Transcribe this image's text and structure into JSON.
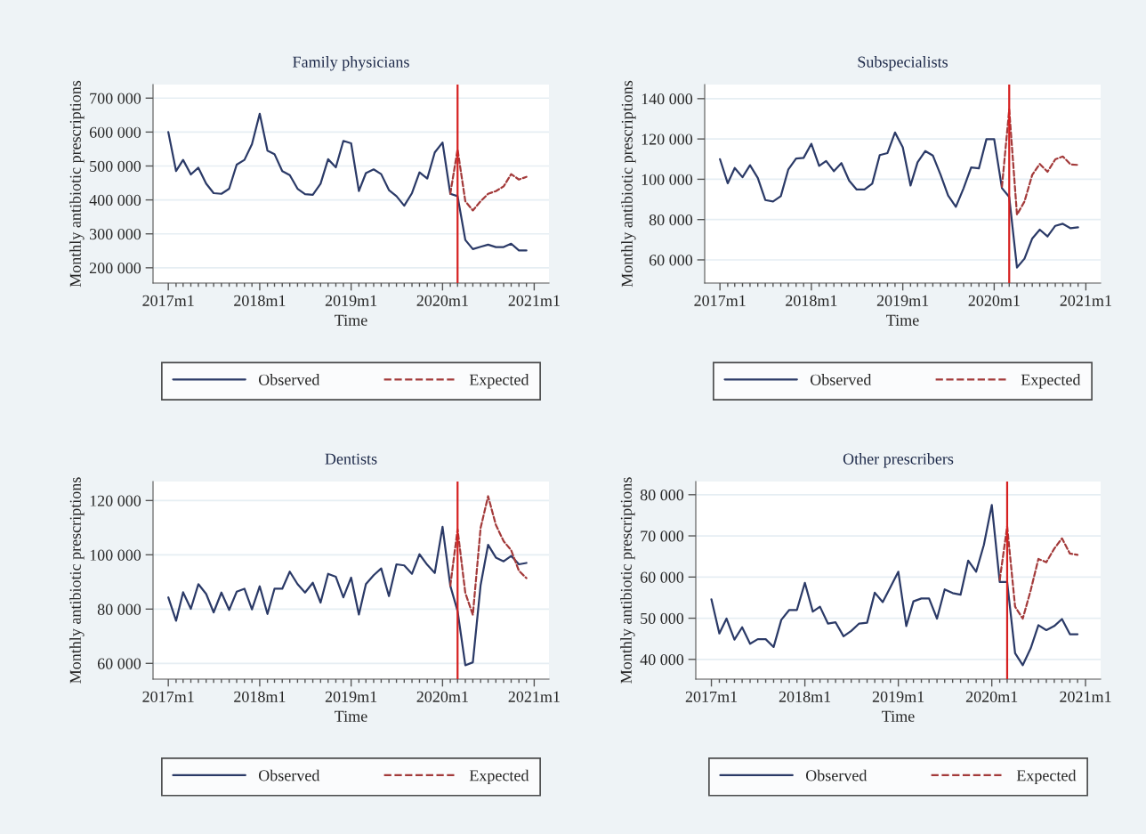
{
  "chart_data": [
    {
      "type": "line",
      "title": "Family physicians",
      "xlabel": "Time",
      "ylabel": "Monthly antibiotic prescriptions",
      "legend": "bottom",
      "grid": "y",
      "x": [
        "2017-01",
        "2017-02",
        "2017-03",
        "2017-04",
        "2017-05",
        "2017-06",
        "2017-07",
        "2017-08",
        "2017-09",
        "2017-10",
        "2017-11",
        "2017-12",
        "2018-01",
        "2018-02",
        "2018-03",
        "2018-04",
        "2018-05",
        "2018-06",
        "2018-07",
        "2018-08",
        "2018-09",
        "2018-10",
        "2018-11",
        "2018-12",
        "2019-01",
        "2019-02",
        "2019-03",
        "2019-04",
        "2019-05",
        "2019-06",
        "2019-07",
        "2019-08",
        "2019-09",
        "2019-10",
        "2019-11",
        "2019-12",
        "2020-01",
        "2020-02",
        "2020-03",
        "2020-04",
        "2020-05",
        "2020-06",
        "2020-07",
        "2020-08",
        "2020-09",
        "2020-10",
        "2020-11",
        "2020-12"
      ],
      "series": [
        {
          "name": "Observed",
          "color": "#2b3a67",
          "line_style": "solid",
          "values": [
            600000,
            485000,
            518000,
            475000,
            495000,
            448000,
            420000,
            418000,
            433000,
            504000,
            518000,
            564000,
            654000,
            545000,
            535000,
            485000,
            473000,
            433000,
            417000,
            415000,
            448000,
            520000,
            496000,
            574000,
            567000,
            426000,
            479000,
            490000,
            476000,
            429000,
            411000,
            383000,
            420000,
            481000,
            463000,
            540000,
            569000,
            418000,
            411000,
            282000,
            255000,
            262000,
            268000,
            261000,
            261000,
            271000,
            251000,
            251000
          ]
        },
        {
          "name": "Expected",
          "color": "#a33a3a",
          "line_style": "dashed",
          "x": [
            "2020-02",
            "2020-03",
            "2020-04",
            "2020-05",
            "2020-06",
            "2020-07",
            "2020-08",
            "2020-09",
            "2020-10",
            "2020-11",
            "2020-12"
          ],
          "values": [
            418000,
            549000,
            396000,
            369000,
            396000,
            418000,
            426000,
            440000,
            476000,
            460000,
            468000
          ]
        }
      ],
      "ylim": [
        155000,
        740000
      ],
      "yticks": [
        {
          "value": 200000,
          "label": "200 000"
        },
        {
          "value": 300000,
          "label": "300 000"
        },
        {
          "value": 400000,
          "label": "400 000"
        },
        {
          "value": 500000,
          "label": "500 000"
        },
        {
          "value": 600000,
          "label": "600 000"
        },
        {
          "value": 700000,
          "label": "700 000"
        }
      ],
      "xlim": [
        "2016-11",
        "2021-03"
      ],
      "xticks": [
        {
          "value": "2017-01",
          "label": "2017m1"
        },
        {
          "value": "2017-02",
          "label": null
        },
        {
          "value": "2017-03",
          "label": null
        },
        {
          "value": "2017-04",
          "label": null
        },
        {
          "value": "2017-05",
          "label": null
        },
        {
          "value": "2017-06",
          "label": null
        },
        {
          "value": "2017-07",
          "label": null
        },
        {
          "value": "2017-08",
          "label": null
        },
        {
          "value": "2017-09",
          "label": null
        },
        {
          "value": "2017-10",
          "label": null
        },
        {
          "value": "2017-11",
          "label": null
        },
        {
          "value": "2017-12",
          "label": null
        },
        {
          "value": "2018-01",
          "label": "2018m1"
        },
        {
          "value": "2018-02",
          "label": null
        },
        {
          "value": "2018-03",
          "label": null
        },
        {
          "value": "2018-04",
          "label": null
        },
        {
          "value": "2018-05",
          "label": null
        },
        {
          "value": "2018-06",
          "label": null
        },
        {
          "value": "2018-07",
          "label": null
        },
        {
          "value": "2018-08",
          "label": null
        },
        {
          "value": "2018-09",
          "label": null
        },
        {
          "value": "2018-10",
          "label": null
        },
        {
          "value": "2018-11",
          "label": null
        },
        {
          "value": "2018-12",
          "label": null
        },
        {
          "value": "2019-01",
          "label": "2019m1"
        },
        {
          "value": "2019-02",
          "label": null
        },
        {
          "value": "2019-03",
          "label": null
        },
        {
          "value": "2019-04",
          "label": null
        },
        {
          "value": "2019-05",
          "label": null
        },
        {
          "value": "2019-06",
          "label": null
        },
        {
          "value": "2019-07",
          "label": null
        },
        {
          "value": "2019-08",
          "label": null
        },
        {
          "value": "2019-09",
          "label": null
        },
        {
          "value": "2019-10",
          "label": null
        },
        {
          "value": "2019-11",
          "label": null
        },
        {
          "value": "2019-12",
          "label": null
        },
        {
          "value": "2020-01",
          "label": "2020m1"
        },
        {
          "value": "2020-02",
          "label": null
        },
        {
          "value": "2020-03",
          "label": null
        },
        {
          "value": "2020-04",
          "label": null
        },
        {
          "value": "2020-05",
          "label": null
        },
        {
          "value": "2020-06",
          "label": null
        },
        {
          "value": "2020-07",
          "label": null
        },
        {
          "value": "2020-08",
          "label": null
        },
        {
          "value": "2020-09",
          "label": null
        },
        {
          "value": "2020-10",
          "label": null
        },
        {
          "value": "2020-11",
          "label": null
        },
        {
          "value": "2020-12",
          "label": null
        },
        {
          "value": "2021-01",
          "label": "2021m1"
        }
      ],
      "ref_lines": [
        {
          "axis": "x",
          "value": "2020-03",
          "color": "#d62020"
        }
      ]
    },
    {
      "type": "line",
      "title": "Subspecialists",
      "xlabel": "Time",
      "ylabel": "Monthly antibiotic prescriptions",
      "legend": "bottom",
      "grid": "y",
      "x": [
        "2017-01",
        "2017-02",
        "2017-03",
        "2017-04",
        "2017-05",
        "2017-06",
        "2017-07",
        "2017-08",
        "2017-09",
        "2017-10",
        "2017-11",
        "2017-12",
        "2018-01",
        "2018-02",
        "2018-03",
        "2018-04",
        "2018-05",
        "2018-06",
        "2018-07",
        "2018-08",
        "2018-09",
        "2018-10",
        "2018-11",
        "2018-12",
        "2019-01",
        "2019-02",
        "2019-03",
        "2019-04",
        "2019-05",
        "2019-06",
        "2019-07",
        "2019-08",
        "2019-09",
        "2019-10",
        "2019-11",
        "2019-12",
        "2020-01",
        "2020-02",
        "2020-03",
        "2020-04",
        "2020-05",
        "2020-06",
        "2020-07",
        "2020-08",
        "2020-09",
        "2020-10",
        "2020-11",
        "2020-12"
      ],
      "series": [
        {
          "name": "Observed",
          "color": "#2b3a67",
          "line_style": "solid",
          "values": [
            110000,
            98000,
            105600,
            101000,
            107000,
            100700,
            89700,
            89000,
            91600,
            104900,
            110300,
            110600,
            117600,
            106600,
            109100,
            104000,
            108000,
            99300,
            94900,
            94900,
            97800,
            112000,
            113000,
            123200,
            115900,
            96900,
            108400,
            114000,
            111800,
            102200,
            91900,
            86300,
            95600,
            105900,
            105400,
            119900,
            119900,
            95600,
            91200,
            56200,
            60600,
            70600,
            75000,
            71600,
            76900,
            77900,
            75700,
            76200
          ]
        },
        {
          "name": "Expected",
          "color": "#a33a3a",
          "line_style": "dashed",
          "x": [
            "2020-02",
            "2020-03",
            "2020-04",
            "2020-05",
            "2020-06",
            "2020-07",
            "2020-08",
            "2020-09",
            "2020-10",
            "2020-11",
            "2020-12"
          ],
          "values": [
            96300,
            134600,
            82400,
            89000,
            102200,
            107600,
            103700,
            109900,
            111300,
            107400,
            107100
          ]
        }
      ],
      "ylim": [
        48500,
        147000
      ],
      "yticks": [
        {
          "value": 60000,
          "label": "60 000"
        },
        {
          "value": 80000,
          "label": "80 000"
        },
        {
          "value": 100000,
          "label": "100 000"
        },
        {
          "value": 120000,
          "label": "120 000"
        },
        {
          "value": 140000,
          "label": "140 000"
        }
      ],
      "xlim": [
        "2016-11",
        "2021-03"
      ],
      "xticks": [
        {
          "value": "2017-01",
          "label": "2017m1"
        },
        {
          "value": "2017-02",
          "label": null
        },
        {
          "value": "2017-03",
          "label": null
        },
        {
          "value": "2017-04",
          "label": null
        },
        {
          "value": "2017-05",
          "label": null
        },
        {
          "value": "2017-06",
          "label": null
        },
        {
          "value": "2017-07",
          "label": null
        },
        {
          "value": "2017-08",
          "label": null
        },
        {
          "value": "2017-09",
          "label": null
        },
        {
          "value": "2017-10",
          "label": null
        },
        {
          "value": "2017-11",
          "label": null
        },
        {
          "value": "2017-12",
          "label": null
        },
        {
          "value": "2018-01",
          "label": "2018m1"
        },
        {
          "value": "2018-02",
          "label": null
        },
        {
          "value": "2018-03",
          "label": null
        },
        {
          "value": "2018-04",
          "label": null
        },
        {
          "value": "2018-05",
          "label": null
        },
        {
          "value": "2018-06",
          "label": null
        },
        {
          "value": "2018-07",
          "label": null
        },
        {
          "value": "2018-08",
          "label": null
        },
        {
          "value": "2018-09",
          "label": null
        },
        {
          "value": "2018-10",
          "label": null
        },
        {
          "value": "2018-11",
          "label": null
        },
        {
          "value": "2018-12",
          "label": null
        },
        {
          "value": "2019-01",
          "label": "2019m1"
        },
        {
          "value": "2019-02",
          "label": null
        },
        {
          "value": "2019-03",
          "label": null
        },
        {
          "value": "2019-04",
          "label": null
        },
        {
          "value": "2019-05",
          "label": null
        },
        {
          "value": "2019-06",
          "label": null
        },
        {
          "value": "2019-07",
          "label": null
        },
        {
          "value": "2019-08",
          "label": null
        },
        {
          "value": "2019-09",
          "label": null
        },
        {
          "value": "2019-10",
          "label": null
        },
        {
          "value": "2019-11",
          "label": null
        },
        {
          "value": "2019-12",
          "label": null
        },
        {
          "value": "2020-01",
          "label": "2020m1"
        },
        {
          "value": "2020-02",
          "label": null
        },
        {
          "value": "2020-03",
          "label": null
        },
        {
          "value": "2020-04",
          "label": null
        },
        {
          "value": "2020-05",
          "label": null
        },
        {
          "value": "2020-06",
          "label": null
        },
        {
          "value": "2020-07",
          "label": null
        },
        {
          "value": "2020-08",
          "label": null
        },
        {
          "value": "2020-09",
          "label": null
        },
        {
          "value": "2020-10",
          "label": null
        },
        {
          "value": "2020-11",
          "label": null
        },
        {
          "value": "2020-12",
          "label": null
        },
        {
          "value": "2021-01",
          "label": "2021m1"
        }
      ],
      "ref_lines": [
        {
          "axis": "x",
          "value": "2020-03",
          "color": "#d62020"
        }
      ]
    },
    {
      "type": "line",
      "title": "Dentists",
      "xlabel": "Time",
      "ylabel": "Monthly antibiotic prescriptions",
      "legend": "bottom",
      "grid": "y",
      "x": [
        "2017-01",
        "2017-02",
        "2017-03",
        "2017-04",
        "2017-05",
        "2017-06",
        "2017-07",
        "2017-08",
        "2017-09",
        "2017-10",
        "2017-11",
        "2017-12",
        "2018-01",
        "2018-02",
        "2018-03",
        "2018-04",
        "2018-05",
        "2018-06",
        "2018-07",
        "2018-08",
        "2018-09",
        "2018-10",
        "2018-11",
        "2018-12",
        "2019-01",
        "2019-02",
        "2019-03",
        "2019-04",
        "2019-05",
        "2019-06",
        "2019-07",
        "2019-08",
        "2019-09",
        "2019-10",
        "2019-11",
        "2019-12",
        "2020-01",
        "2020-02",
        "2020-03",
        "2020-04",
        "2020-05",
        "2020-06",
        "2020-07",
        "2020-08",
        "2020-09",
        "2020-10",
        "2020-11",
        "2020-12"
      ],
      "series": [
        {
          "name": "Observed",
          "color": "#2b3a67",
          "line_style": "solid",
          "values": [
            84300,
            75700,
            86200,
            80100,
            89200,
            85600,
            78800,
            86100,
            79700,
            86400,
            87500,
            79900,
            88400,
            78200,
            87500,
            87500,
            93800,
            89200,
            86100,
            89700,
            82400,
            93000,
            91900,
            84300,
            91600,
            78000,
            89200,
            92500,
            95000,
            84800,
            96500,
            96100,
            93000,
            100200,
            96300,
            93300,
            110300,
            88600,
            79300,
            59300,
            60400,
            88800,
            103700,
            99000,
            97600,
            99600,
            96500,
            97000
          ]
        },
        {
          "name": "Expected",
          "color": "#a33a3a",
          "line_style": "dashed",
          "x": [
            "2020-02",
            "2020-03",
            "2020-04",
            "2020-05",
            "2020-06",
            "2020-07",
            "2020-08",
            "2020-09",
            "2020-10",
            "2020-11",
            "2020-12"
          ],
          "values": [
            88600,
            109400,
            85900,
            77900,
            109900,
            121600,
            111000,
            105000,
            101700,
            94100,
            91400
          ]
        }
      ],
      "ylim": [
        54200,
        127000
      ],
      "yticks": [
        {
          "value": 60000,
          "label": "60 000"
        },
        {
          "value": 80000,
          "label": "80 000"
        },
        {
          "value": 100000,
          "label": "100 000"
        },
        {
          "value": 120000,
          "label": "120 000"
        }
      ],
      "xlim": [
        "2016-11",
        "2021-03"
      ],
      "xticks": [
        {
          "value": "2017-01",
          "label": "2017m1"
        },
        {
          "value": "2017-02",
          "label": null
        },
        {
          "value": "2017-03",
          "label": null
        },
        {
          "value": "2017-04",
          "label": null
        },
        {
          "value": "2017-05",
          "label": null
        },
        {
          "value": "2017-06",
          "label": null
        },
        {
          "value": "2017-07",
          "label": null
        },
        {
          "value": "2017-08",
          "label": null
        },
        {
          "value": "2017-09",
          "label": null
        },
        {
          "value": "2017-10",
          "label": null
        },
        {
          "value": "2017-11",
          "label": null
        },
        {
          "value": "2017-12",
          "label": null
        },
        {
          "value": "2018-01",
          "label": "2018m1"
        },
        {
          "value": "2018-02",
          "label": null
        },
        {
          "value": "2018-03",
          "label": null
        },
        {
          "value": "2018-04",
          "label": null
        },
        {
          "value": "2018-05",
          "label": null
        },
        {
          "value": "2018-06",
          "label": null
        },
        {
          "value": "2018-07",
          "label": null
        },
        {
          "value": "2018-08",
          "label": null
        },
        {
          "value": "2018-09",
          "label": null
        },
        {
          "value": "2018-10",
          "label": null
        },
        {
          "value": "2018-11",
          "label": null
        },
        {
          "value": "2018-12",
          "label": null
        },
        {
          "value": "2019-01",
          "label": "2019m1"
        },
        {
          "value": "2019-02",
          "label": null
        },
        {
          "value": "2019-03",
          "label": null
        },
        {
          "value": "2019-04",
          "label": null
        },
        {
          "value": "2019-05",
          "label": null
        },
        {
          "value": "2019-06",
          "label": null
        },
        {
          "value": "2019-07",
          "label": null
        },
        {
          "value": "2019-08",
          "label": null
        },
        {
          "value": "2019-09",
          "label": null
        },
        {
          "value": "2019-10",
          "label": null
        },
        {
          "value": "2019-11",
          "label": null
        },
        {
          "value": "2019-12",
          "label": null
        },
        {
          "value": "2020-01",
          "label": "2020m1"
        },
        {
          "value": "2020-02",
          "label": null
        },
        {
          "value": "2020-03",
          "label": null
        },
        {
          "value": "2020-04",
          "label": null
        },
        {
          "value": "2020-05",
          "label": null
        },
        {
          "value": "2020-06",
          "label": null
        },
        {
          "value": "2020-07",
          "label": null
        },
        {
          "value": "2020-08",
          "label": null
        },
        {
          "value": "2020-09",
          "label": null
        },
        {
          "value": "2020-10",
          "label": null
        },
        {
          "value": "2020-11",
          "label": null
        },
        {
          "value": "2020-12",
          "label": null
        },
        {
          "value": "2021-01",
          "label": "2021m1"
        }
      ],
      "ref_lines": [
        {
          "axis": "x",
          "value": "2020-03",
          "color": "#d62020"
        }
      ]
    },
    {
      "type": "line",
      "title": "Other prescribers",
      "xlabel": "Time",
      "ylabel": "Monthly antibiotic prescriptions",
      "legend": "bottom",
      "grid": "y",
      "x": [
        "2017-01",
        "2017-02",
        "2017-03",
        "2017-04",
        "2017-05",
        "2017-06",
        "2017-07",
        "2017-08",
        "2017-09",
        "2017-10",
        "2017-11",
        "2017-12",
        "2018-01",
        "2018-02",
        "2018-03",
        "2018-04",
        "2018-05",
        "2018-06",
        "2018-07",
        "2018-08",
        "2018-09",
        "2018-10",
        "2018-11",
        "2018-12",
        "2019-01",
        "2019-02",
        "2019-03",
        "2019-04",
        "2019-05",
        "2019-06",
        "2019-07",
        "2019-08",
        "2019-09",
        "2019-10",
        "2019-11",
        "2019-12",
        "2020-01",
        "2020-02",
        "2020-03",
        "2020-04",
        "2020-05",
        "2020-06",
        "2020-07",
        "2020-08",
        "2020-09",
        "2020-10",
        "2020-11",
        "2020-12"
      ],
      "series": [
        {
          "name": "Observed",
          "color": "#2b3a67",
          "line_style": "solid",
          "values": [
            54600,
            46300,
            49900,
            44800,
            47800,
            43800,
            44900,
            44900,
            43000,
            49600,
            52000,
            52000,
            58600,
            51600,
            52800,
            48700,
            49000,
            45600,
            46900,
            48700,
            48900,
            56200,
            53900,
            57500,
            61300,
            48100,
            54100,
            54800,
            54800,
            49900,
            57000,
            56100,
            55700,
            64000,
            61300,
            67800,
            77500,
            58800,
            58800,
            41500,
            38600,
            42700,
            48300,
            47100,
            48100,
            49800,
            46100,
            46100
          ]
        },
        {
          "name": "Expected",
          "color": "#a33a3a",
          "line_style": "dashed",
          "x": [
            "2020-02",
            "2020-03",
            "2020-04",
            "2020-05",
            "2020-06",
            "2020-07",
            "2020-08",
            "2020-09",
            "2020-10",
            "2020-11",
            "2020-12"
          ],
          "values": [
            59300,
            72300,
            52800,
            49900,
            56800,
            64400,
            63600,
            66900,
            69400,
            65700,
            65400
          ]
        }
      ],
      "ylim": [
        35200,
        83200
      ],
      "yticks": [
        {
          "value": 40000,
          "label": "40 000"
        },
        {
          "value": 50000,
          "label": "50 000"
        },
        {
          "value": 60000,
          "label": "60 000"
        },
        {
          "value": 70000,
          "label": "70 000"
        },
        {
          "value": 80000,
          "label": "80 000"
        }
      ],
      "xlim": [
        "2016-11",
        "2021-03"
      ],
      "xticks": [
        {
          "value": "2017-01",
          "label": "2017m1"
        },
        {
          "value": "2017-02",
          "label": null
        },
        {
          "value": "2017-03",
          "label": null
        },
        {
          "value": "2017-04",
          "label": null
        },
        {
          "value": "2017-05",
          "label": null
        },
        {
          "value": "2017-06",
          "label": null
        },
        {
          "value": "2017-07",
          "label": null
        },
        {
          "value": "2017-08",
          "label": null
        },
        {
          "value": "2017-09",
          "label": null
        },
        {
          "value": "2017-10",
          "label": null
        },
        {
          "value": "2017-11",
          "label": null
        },
        {
          "value": "2017-12",
          "label": null
        },
        {
          "value": "2018-01",
          "label": "2018m1"
        },
        {
          "value": "2018-02",
          "label": null
        },
        {
          "value": "2018-03",
          "label": null
        },
        {
          "value": "2018-04",
          "label": null
        },
        {
          "value": "2018-05",
          "label": null
        },
        {
          "value": "2018-06",
          "label": null
        },
        {
          "value": "2018-07",
          "label": null
        },
        {
          "value": "2018-08",
          "label": null
        },
        {
          "value": "2018-09",
          "label": null
        },
        {
          "value": "2018-10",
          "label": null
        },
        {
          "value": "2018-11",
          "label": null
        },
        {
          "value": "2018-12",
          "label": null
        },
        {
          "value": "2019-01",
          "label": "2019m1"
        },
        {
          "value": "2019-02",
          "label": null
        },
        {
          "value": "2019-03",
          "label": null
        },
        {
          "value": "2019-04",
          "label": null
        },
        {
          "value": "2019-05",
          "label": null
        },
        {
          "value": "2019-06",
          "label": null
        },
        {
          "value": "2019-07",
          "label": null
        },
        {
          "value": "2019-08",
          "label": null
        },
        {
          "value": "2019-09",
          "label": null
        },
        {
          "value": "2019-10",
          "label": null
        },
        {
          "value": "2019-11",
          "label": null
        },
        {
          "value": "2019-12",
          "label": null
        },
        {
          "value": "2020-01",
          "label": "2020m1"
        },
        {
          "value": "2020-02",
          "label": null
        },
        {
          "value": "2020-03",
          "label": null
        },
        {
          "value": "2020-04",
          "label": null
        },
        {
          "value": "2020-05",
          "label": null
        },
        {
          "value": "2020-06",
          "label": null
        },
        {
          "value": "2020-07",
          "label": null
        },
        {
          "value": "2020-08",
          "label": null
        },
        {
          "value": "2020-09",
          "label": null
        },
        {
          "value": "2020-10",
          "label": null
        },
        {
          "value": "2020-11",
          "label": null
        },
        {
          "value": "2020-12",
          "label": null
        },
        {
          "value": "2021-01",
          "label": "2021m1"
        }
      ],
      "ref_lines": [
        {
          "axis": "x",
          "value": "2020-03",
          "color": "#d62020"
        }
      ]
    }
  ]
}
